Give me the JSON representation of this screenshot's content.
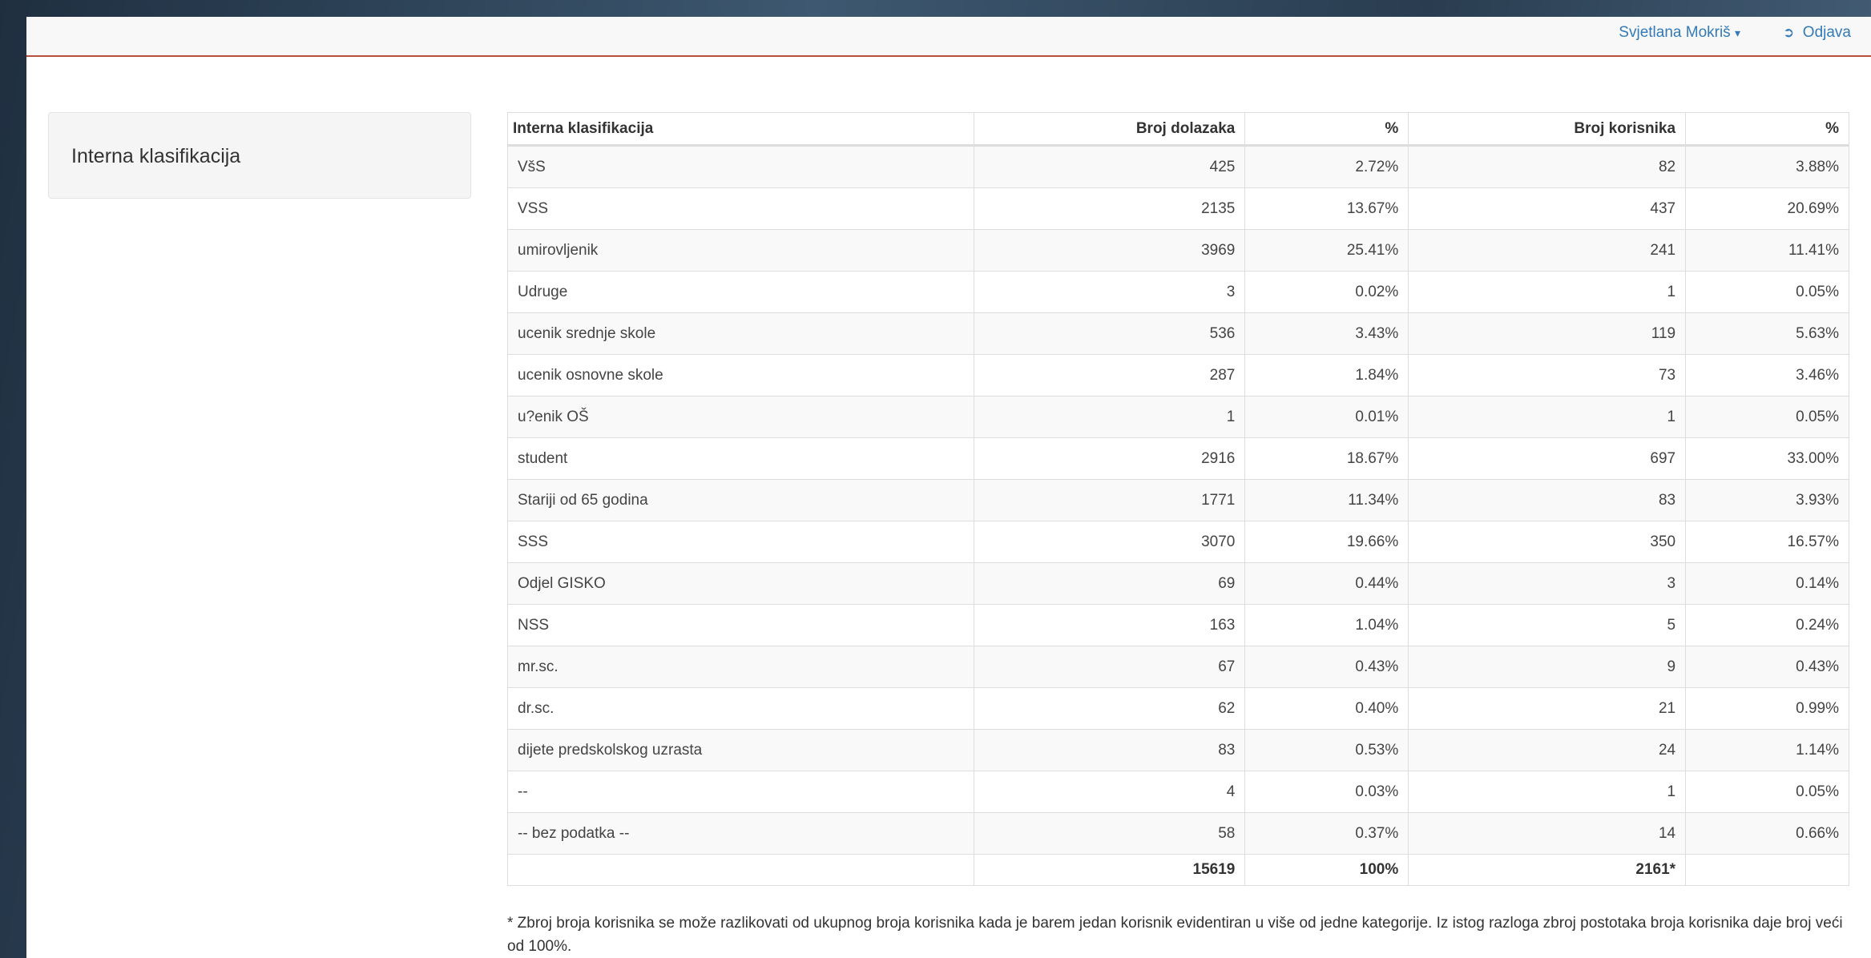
{
  "nav": {
    "user": "Svjetlana Mokriš",
    "logout": "Odjava"
  },
  "sidebar": {
    "title": "Interna klasifikacija"
  },
  "table": {
    "headers": [
      "Interna klasifikacija",
      "Broj dolazaka",
      "%",
      "Broj korisnika",
      "%"
    ],
    "rows": [
      [
        "VšS",
        "425",
        "2.72%",
        "82",
        "3.88%"
      ],
      [
        "VSS",
        "2135",
        "13.67%",
        "437",
        "20.69%"
      ],
      [
        "umirovljenik",
        "3969",
        "25.41%",
        "241",
        "11.41%"
      ],
      [
        "Udruge",
        "3",
        "0.02%",
        "1",
        "0.05%"
      ],
      [
        "ucenik srednje skole",
        "536",
        "3.43%",
        "119",
        "5.63%"
      ],
      [
        "ucenik osnovne skole",
        "287",
        "1.84%",
        "73",
        "3.46%"
      ],
      [
        "u?enik OŠ",
        "1",
        "0.01%",
        "1",
        "0.05%"
      ],
      [
        "student",
        "2916",
        "18.67%",
        "697",
        "33.00%"
      ],
      [
        "Stariji od 65 godina",
        "1771",
        "11.34%",
        "83",
        "3.93%"
      ],
      [
        "SSS",
        "3070",
        "19.66%",
        "350",
        "16.57%"
      ],
      [
        "Odjel GISKO",
        "69",
        "0.44%",
        "3",
        "0.14%"
      ],
      [
        "NSS",
        "163",
        "1.04%",
        "5",
        "0.24%"
      ],
      [
        "mr.sc.",
        "67",
        "0.43%",
        "9",
        "0.43%"
      ],
      [
        "dr.sc.",
        "62",
        "0.40%",
        "21",
        "0.99%"
      ],
      [
        "dijete predskolskog uzrasta",
        "83",
        "0.53%",
        "24",
        "1.14%"
      ],
      [
        "--",
        "4",
        "0.03%",
        "1",
        "0.05%"
      ],
      [
        "-- bez podatka --",
        "58",
        "0.37%",
        "14",
        "0.66%"
      ]
    ],
    "totals": {
      "dolazaka": "15619",
      "posto": "100%",
      "korisnika": "2161*"
    }
  },
  "footnote": "* Zbroj broja korisnika se može razlikovati od ukupnog broja korisnika kada je barem jedan korisnik evidentiran u više od jedne kategorije. Iz istog razloga zbroj postotaka broja korisnika daje broj veći od 100%."
}
